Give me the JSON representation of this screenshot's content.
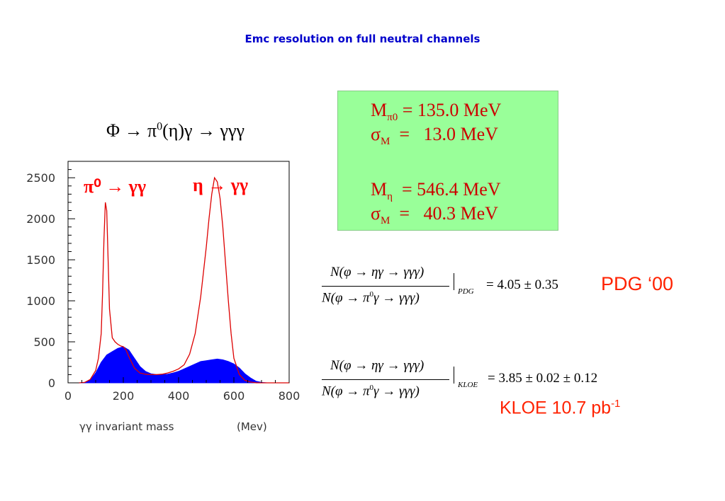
{
  "title": "Emc resolution on full neutral channels",
  "reaction": {
    "part1": "Φ → π",
    "sup": "0",
    "part2": "(η)γ → γγγ"
  },
  "results": [
    {
      "symbol": "M",
      "sub": "π0",
      "text": " = 135.0 MeV"
    },
    {
      "symbol": "σ",
      "sub": "M",
      "text": "  =   13.0 MeV"
    },
    {
      "symbol": "M",
      "sub": "η",
      "text": "  = 546.4 MeV"
    },
    {
      "symbol": "σ",
      "sub": "M",
      "text": "  =   40.3 MeV"
    }
  ],
  "ratios": [
    {
      "numerator": "N(φ → ηγ → γγγ)",
      "den_a": "N(φ → π",
      "den_sup": "0",
      "den_b": "γ → γγγ)",
      "subscript": "PDG",
      "value": "= 4.05 ± 0.35"
    },
    {
      "numerator": "N(φ → ηγ → γγγ)",
      "den_a": "N(φ → π",
      "den_sup": "0",
      "den_b": "γ → γγγ)",
      "subscript": "KLOE",
      "value": "= 3.85 ± 0.02 ± 0.12"
    }
  ],
  "pdg_label": "PDG ‘00",
  "kloe_label": {
    "text": "KLOE 10.7 pb",
    "sup": "-1"
  },
  "colors": {
    "title": "#0000cc",
    "box_bg": "#99ff99",
    "box_text": "#cc0000",
    "red_curve": "#dd0000",
    "blue_fill": "#0000ff",
    "tag_red": "#ff2200"
  },
  "chart_data": {
    "type": "area",
    "xlabel": "γγ invariant mass",
    "xunit": "(Mev)",
    "xlim": [
      0,
      800
    ],
    "ylim": [
      0,
      2700
    ],
    "xticks": [
      0,
      200,
      400,
      600,
      800
    ],
    "yticks": [
      0,
      500,
      1000,
      1500,
      2000,
      2500
    ],
    "annotations": [
      {
        "text": "π⁰ → γγ",
        "x": 140,
        "y": 2450
      },
      {
        "text": "η → γγ",
        "x": 560,
        "y": 2450
      }
    ],
    "series": [
      {
        "style": "red-outline",
        "x": [
          40,
          60,
          80,
          100,
          110,
          120,
          125,
          130,
          135,
          140,
          145,
          150,
          160,
          170,
          180,
          190,
          200,
          210,
          220,
          240,
          260,
          280,
          300,
          320,
          340,
          360,
          380,
          400,
          420,
          440,
          460,
          480,
          500,
          510,
          520,
          530,
          540,
          550,
          560,
          570,
          580,
          590,
          600,
          620,
          640,
          660,
          680,
          700,
          720,
          740,
          760,
          780,
          800
        ],
        "y": [
          0,
          5,
          40,
          150,
          300,
          600,
          1100,
          1750,
          2200,
          2100,
          1500,
          900,
          550,
          500,
          470,
          450,
          440,
          400,
          320,
          180,
          120,
          105,
          100,
          100,
          105,
          120,
          140,
          170,
          220,
          350,
          600,
          1050,
          1650,
          2000,
          2300,
          2500,
          2450,
          2250,
          1900,
          1450,
          1000,
          600,
          300,
          100,
          30,
          10,
          0,
          0,
          0,
          0,
          0,
          0,
          0
        ]
      },
      {
        "style": "blue-fill",
        "x": [
          40,
          60,
          80,
          100,
          120,
          140,
          160,
          180,
          200,
          220,
          240,
          260,
          280,
          300,
          320,
          340,
          360,
          380,
          400,
          420,
          440,
          460,
          480,
          500,
          520,
          540,
          560,
          580,
          600,
          620,
          640,
          660,
          680,
          700,
          720,
          740,
          760,
          780,
          800
        ],
        "y": [
          0,
          5,
          30,
          120,
          250,
          340,
          380,
          420,
          440,
          400,
          300,
          200,
          140,
          110,
          100,
          100,
          105,
          120,
          140,
          170,
          200,
          230,
          260,
          270,
          280,
          290,
          280,
          260,
          230,
          180,
          110,
          60,
          20,
          5,
          0,
          0,
          0,
          0,
          0
        ]
      }
    ]
  }
}
